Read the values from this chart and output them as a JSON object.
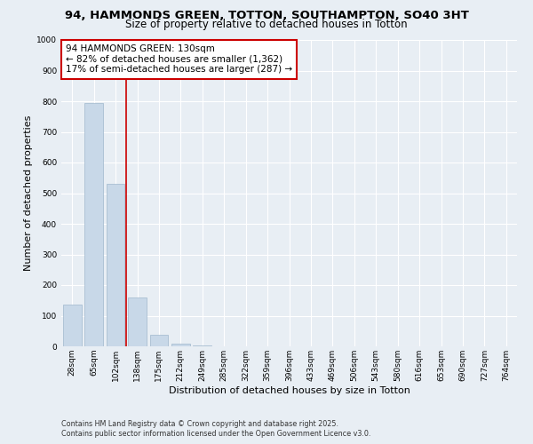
{
  "title_line1": "94, HAMMONDS GREEN, TOTTON, SOUTHAMPTON, SO40 3HT",
  "title_line2": "Size of property relative to detached houses in Totton",
  "xlabel": "Distribution of detached houses by size in Totton",
  "ylabel": "Number of detached properties",
  "bar_labels": [
    "28sqm",
    "65sqm",
    "102sqm",
    "138sqm",
    "175sqm",
    "212sqm",
    "249sqm",
    "285sqm",
    "322sqm",
    "359sqm",
    "396sqm",
    "433sqm",
    "469sqm",
    "506sqm",
    "543sqm",
    "580sqm",
    "616sqm",
    "653sqm",
    "690sqm",
    "727sqm",
    "764sqm"
  ],
  "bar_values": [
    135,
    795,
    530,
    160,
    38,
    8,
    3,
    1,
    0,
    0,
    0,
    0,
    0,
    0,
    0,
    0,
    0,
    0,
    0,
    0,
    0
  ],
  "bar_color": "#c8d8e8",
  "bar_edgecolor": "#a0b8cc",
  "vline_color": "#cc0000",
  "annotation_text": "94 HAMMONDS GREEN: 130sqm\n← 82% of detached houses are smaller (1,362)\n17% of semi-detached houses are larger (287) →",
  "annotation_box_color": "#ffffff",
  "annotation_box_edgecolor": "#cc0000",
  "ylim": [
    0,
    1000
  ],
  "yticks": [
    0,
    100,
    200,
    300,
    400,
    500,
    600,
    700,
    800,
    900,
    1000
  ],
  "background_color": "#e8eef4",
  "plot_background": "#e8eef4",
  "grid_color": "#ffffff",
  "footer_line1": "Contains HM Land Registry data © Crown copyright and database right 2025.",
  "footer_line2": "Contains public sector information licensed under the Open Government Licence v3.0.",
  "title_fontsize": 9.5,
  "subtitle_fontsize": 8.5,
  "tick_fontsize": 6.5,
  "ylabel_fontsize": 8,
  "xlabel_fontsize": 8,
  "annotation_fontsize": 7.5,
  "footer_fontsize": 5.8
}
